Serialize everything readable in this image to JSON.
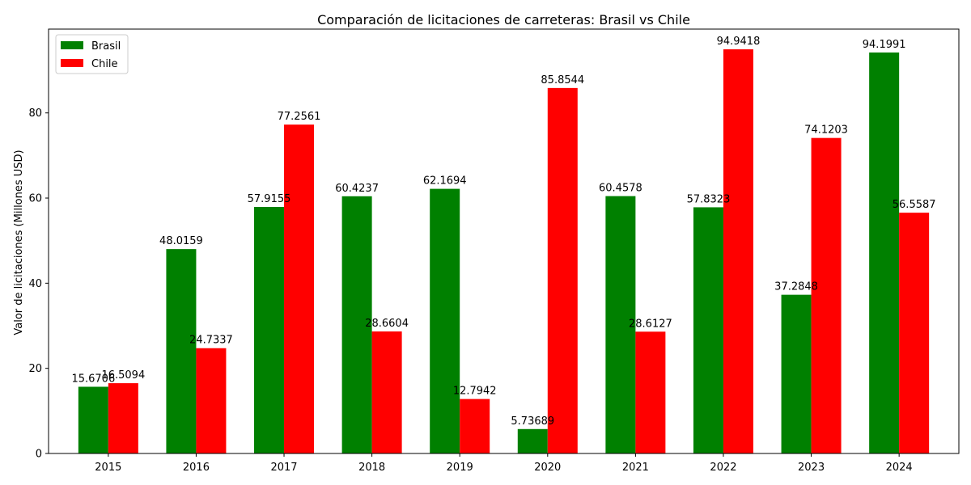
{
  "chart_data": {
    "type": "bar",
    "title": "Comparación de licitaciones de carreteras: Brasil vs Chile",
    "xlabel": "",
    "ylabel": "Valor de licitaciones (Millones USD)",
    "categories": [
      "2015",
      "2016",
      "2017",
      "2018",
      "2019",
      "2020",
      "2021",
      "2022",
      "2023",
      "2024"
    ],
    "series": [
      {
        "name": "Brasil",
        "color": "#008000",
        "values": [
          15.6706,
          48.0159,
          57.9155,
          60.4237,
          62.1694,
          5.73689,
          60.4578,
          57.8323,
          37.2848,
          94.1991
        ],
        "labels": [
          "15.6706",
          "48.0159",
          "57.9155",
          "60.4237",
          "62.1694",
          "5.73689",
          "60.4578",
          "57.8323",
          "37.2848",
          "94.1991"
        ]
      },
      {
        "name": "Chile",
        "color": "#ff0000",
        "values": [
          16.5094,
          24.7337,
          77.2561,
          28.6604,
          12.7942,
          85.8544,
          28.6127,
          94.9418,
          74.1203,
          56.5587
        ],
        "labels": [
          "16.5094",
          "24.7337",
          "77.2561",
          "28.6604",
          "12.7942",
          "85.8544",
          "28.6127",
          "94.9418",
          "74.1203",
          "56.5587"
        ]
      }
    ],
    "ylim": [
      0,
      99.69
    ],
    "yticks": [
      0,
      20,
      40,
      60,
      80
    ],
    "ytick_labels": [
      "0",
      "20",
      "40",
      "60",
      "80"
    ],
    "grid": false,
    "legend_position": "top-left"
  }
}
